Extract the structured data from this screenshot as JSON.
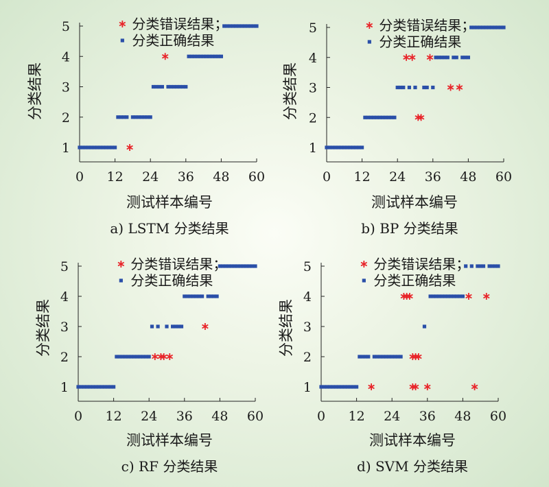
{
  "chart_data": [
    {
      "type": "scatter",
      "title": "a) LSTM 分类结果",
      "xlabel": "测试样本编号",
      "ylabel": "分类结果",
      "xlim": [
        0,
        60
      ],
      "ylim": [
        0.5,
        5.2
      ],
      "xticks": [
        "0",
        "12",
        "24",
        "36",
        "48",
        "60"
      ],
      "yticks": [
        "1",
        "2",
        "3",
        "4",
        "5"
      ],
      "legend_position": "top-right",
      "series": [
        {
          "name": "分类错误结果；",
          "marker": "asterisk",
          "color": "#e8252a",
          "points": [
            [
              17,
              1
            ],
            [
              29,
              4
            ]
          ]
        },
        {
          "name": "分类正确结果",
          "marker": "square",
          "color": "#2a4fa8",
          "points": [
            [
              0,
              1
            ],
            [
              1,
              1
            ],
            [
              2,
              1
            ],
            [
              3,
              1
            ],
            [
              4,
              1
            ],
            [
              5,
              1
            ],
            [
              6,
              1
            ],
            [
              7,
              1
            ],
            [
              8,
              1
            ],
            [
              9,
              1
            ],
            [
              10,
              1
            ],
            [
              11,
              1
            ],
            [
              12,
              1
            ],
            [
              13,
              2
            ],
            [
              14,
              2
            ],
            [
              15,
              2
            ],
            [
              16,
              2
            ],
            [
              18,
              2
            ],
            [
              19,
              2
            ],
            [
              20,
              2
            ],
            [
              21,
              2
            ],
            [
              22,
              2
            ],
            [
              23,
              2
            ],
            [
              24,
              2
            ],
            [
              25,
              3
            ],
            [
              26,
              3
            ],
            [
              27,
              3
            ],
            [
              28,
              3
            ],
            [
              30,
              3
            ],
            [
              31,
              3
            ],
            [
              32,
              3
            ],
            [
              33,
              3
            ],
            [
              34,
              3
            ],
            [
              35,
              3
            ],
            [
              36,
              3
            ],
            [
              37,
              4
            ],
            [
              38,
              4
            ],
            [
              39,
              4
            ],
            [
              40,
              4
            ],
            [
              41,
              4
            ],
            [
              42,
              4
            ],
            [
              43,
              4
            ],
            [
              44,
              4
            ],
            [
              45,
              4
            ],
            [
              46,
              4
            ],
            [
              47,
              4
            ],
            [
              48,
              4
            ],
            [
              49,
              5
            ],
            [
              50,
              5
            ],
            [
              51,
              5
            ],
            [
              52,
              5
            ],
            [
              53,
              5
            ],
            [
              54,
              5
            ],
            [
              55,
              5
            ],
            [
              56,
              5
            ],
            [
              57,
              5
            ],
            [
              58,
              5
            ],
            [
              59,
              5
            ],
            [
              60,
              5
            ]
          ]
        }
      ]
    },
    {
      "type": "scatter",
      "title": "b) BP 分类结果",
      "xlabel": "测试样本编号",
      "ylabel": "分类结果",
      "xlim": [
        0,
        60
      ],
      "ylim": [
        0.5,
        5.2
      ],
      "xticks": [
        "0",
        "12",
        "24",
        "36",
        "48",
        "60"
      ],
      "yticks": [
        "1",
        "2",
        "3",
        "4",
        "5"
      ],
      "legend_position": "top-right",
      "series": [
        {
          "name": "分类错误结果；",
          "marker": "asterisk",
          "color": "#e8252a",
          "points": [
            [
              27,
              4
            ],
            [
              29,
              4
            ],
            [
              35,
              4
            ],
            [
              31,
              2
            ],
            [
              32,
              2
            ],
            [
              42,
              3
            ],
            [
              45,
              3
            ]
          ]
        },
        {
          "name": "分类正确结果",
          "marker": "square",
          "color": "#2a4fa8",
          "points": [
            [
              0,
              1
            ],
            [
              1,
              1
            ],
            [
              2,
              1
            ],
            [
              3,
              1
            ],
            [
              4,
              1
            ],
            [
              5,
              1
            ],
            [
              6,
              1
            ],
            [
              7,
              1
            ],
            [
              8,
              1
            ],
            [
              9,
              1
            ],
            [
              10,
              1
            ],
            [
              11,
              1
            ],
            [
              12,
              1
            ],
            [
              13,
              2
            ],
            [
              14,
              2
            ],
            [
              15,
              2
            ],
            [
              16,
              2
            ],
            [
              17,
              2
            ],
            [
              18,
              2
            ],
            [
              19,
              2
            ],
            [
              20,
              2
            ],
            [
              21,
              2
            ],
            [
              22,
              2
            ],
            [
              23,
              2
            ],
            [
              24,
              3
            ],
            [
              25,
              3
            ],
            [
              26,
              3
            ],
            [
              28,
              3
            ],
            [
              30,
              3
            ],
            [
              33,
              3
            ],
            [
              34,
              3
            ],
            [
              36,
              3
            ],
            [
              37,
              4
            ],
            [
              38,
              4
            ],
            [
              39,
              4
            ],
            [
              40,
              4
            ],
            [
              41,
              4
            ],
            [
              43,
              4
            ],
            [
              44,
              4
            ],
            [
              46,
              4
            ],
            [
              47,
              4
            ],
            [
              48,
              4
            ],
            [
              49,
              5
            ],
            [
              50,
              5
            ],
            [
              51,
              5
            ],
            [
              52,
              5
            ],
            [
              53,
              5
            ],
            [
              54,
              5
            ],
            [
              55,
              5
            ],
            [
              56,
              5
            ],
            [
              57,
              5
            ],
            [
              58,
              5
            ],
            [
              59,
              5
            ],
            [
              60,
              5
            ]
          ]
        }
      ]
    },
    {
      "type": "scatter",
      "title": "c) RF 分类结果",
      "xlabel": "测试样本编号",
      "ylabel": "分类结果",
      "xlim": [
        0,
        60
      ],
      "ylim": [
        0.5,
        5.2
      ],
      "xticks": [
        "0",
        "12",
        "24",
        "36",
        "48",
        "60"
      ],
      "yticks": [
        "1",
        "2",
        "3",
        "4",
        "5"
      ],
      "legend_position": "top-right",
      "series": [
        {
          "name": "分类错误结果；",
          "marker": "asterisk",
          "color": "#e8252a",
          "points": [
            [
              26,
              2
            ],
            [
              28,
              2
            ],
            [
              29,
              2
            ],
            [
              31,
              2
            ],
            [
              43,
              3
            ]
          ]
        },
        {
          "name": "分类正确结果",
          "marker": "square",
          "color": "#2a4fa8",
          "points": [
            [
              0,
              1
            ],
            [
              1,
              1
            ],
            [
              2,
              1
            ],
            [
              3,
              1
            ],
            [
              4,
              1
            ],
            [
              5,
              1
            ],
            [
              6,
              1
            ],
            [
              7,
              1
            ],
            [
              8,
              1
            ],
            [
              9,
              1
            ],
            [
              10,
              1
            ],
            [
              11,
              1
            ],
            [
              12,
              1
            ],
            [
              13,
              2
            ],
            [
              14,
              2
            ],
            [
              15,
              2
            ],
            [
              16,
              2
            ],
            [
              17,
              2
            ],
            [
              18,
              2
            ],
            [
              19,
              2
            ],
            [
              20,
              2
            ],
            [
              21,
              2
            ],
            [
              22,
              2
            ],
            [
              23,
              2
            ],
            [
              24,
              2
            ],
            [
              25,
              3
            ],
            [
              27,
              3
            ],
            [
              30,
              3
            ],
            [
              32,
              3
            ],
            [
              33,
              3
            ],
            [
              34,
              3
            ],
            [
              35,
              3
            ],
            [
              36,
              4
            ],
            [
              37,
              4
            ],
            [
              38,
              4
            ],
            [
              39,
              4
            ],
            [
              40,
              4
            ],
            [
              41,
              4
            ],
            [
              42,
              4
            ],
            [
              44,
              4
            ],
            [
              45,
              4
            ],
            [
              46,
              4
            ],
            [
              47,
              4
            ],
            [
              48,
              5
            ],
            [
              49,
              5
            ],
            [
              50,
              5
            ],
            [
              51,
              5
            ],
            [
              52,
              5
            ],
            [
              53,
              5
            ],
            [
              54,
              5
            ],
            [
              55,
              5
            ],
            [
              56,
              5
            ],
            [
              57,
              5
            ],
            [
              58,
              5
            ],
            [
              59,
              5
            ],
            [
              60,
              5
            ]
          ]
        }
      ]
    },
    {
      "type": "scatter",
      "title": "d) SVM 分类结果",
      "xlabel": "测试样本编号",
      "ylabel": "分类结果",
      "xlim": [
        0,
        60
      ],
      "ylim": [
        0.5,
        5.2
      ],
      "xticks": [
        "0",
        "12",
        "24",
        "36",
        "48",
        "60"
      ],
      "yticks": [
        "1",
        "2",
        "3",
        "4",
        "5"
      ],
      "legend_position": "top-right",
      "series": [
        {
          "name": "分类错误结果；",
          "marker": "asterisk",
          "color": "#e8252a",
          "points": [
            [
              28,
              4
            ],
            [
              29,
              4
            ],
            [
              30,
              4
            ],
            [
              50,
              4
            ],
            [
              56,
              4
            ],
            [
              31,
              2
            ],
            [
              32,
              2
            ],
            [
              33,
              2
            ],
            [
              17,
              1
            ],
            [
              31,
              1
            ],
            [
              32,
              1
            ],
            [
              36,
              1
            ],
            [
              52,
              1
            ]
          ]
        },
        {
          "name": "分类正确结果",
          "marker": "square",
          "color": "#2a4fa8",
          "points": [
            [
              0,
              1
            ],
            [
              1,
              1
            ],
            [
              2,
              1
            ],
            [
              3,
              1
            ],
            [
              4,
              1
            ],
            [
              5,
              1
            ],
            [
              6,
              1
            ],
            [
              7,
              1
            ],
            [
              8,
              1
            ],
            [
              9,
              1
            ],
            [
              10,
              1
            ],
            [
              11,
              1
            ],
            [
              12,
              1
            ],
            [
              13,
              2
            ],
            [
              14,
              2
            ],
            [
              15,
              2
            ],
            [
              16,
              2
            ],
            [
              18,
              2
            ],
            [
              19,
              2
            ],
            [
              20,
              2
            ],
            [
              21,
              2
            ],
            [
              22,
              2
            ],
            [
              23,
              2
            ],
            [
              24,
              2
            ],
            [
              25,
              2
            ],
            [
              26,
              2
            ],
            [
              27,
              2
            ],
            [
              35,
              3
            ],
            [
              37,
              4
            ],
            [
              38,
              4
            ],
            [
              39,
              4
            ],
            [
              40,
              4
            ],
            [
              41,
              4
            ],
            [
              42,
              4
            ],
            [
              43,
              4
            ],
            [
              44,
              4
            ],
            [
              45,
              4
            ],
            [
              46,
              4
            ],
            [
              47,
              4
            ],
            [
              48,
              4
            ],
            [
              49,
              5
            ],
            [
              51,
              5
            ],
            [
              53,
              5
            ],
            [
              54,
              5
            ],
            [
              55,
              5
            ],
            [
              57,
              5
            ],
            [
              58,
              5
            ],
            [
              59,
              5
            ],
            [
              60,
              5
            ]
          ]
        }
      ]
    }
  ]
}
